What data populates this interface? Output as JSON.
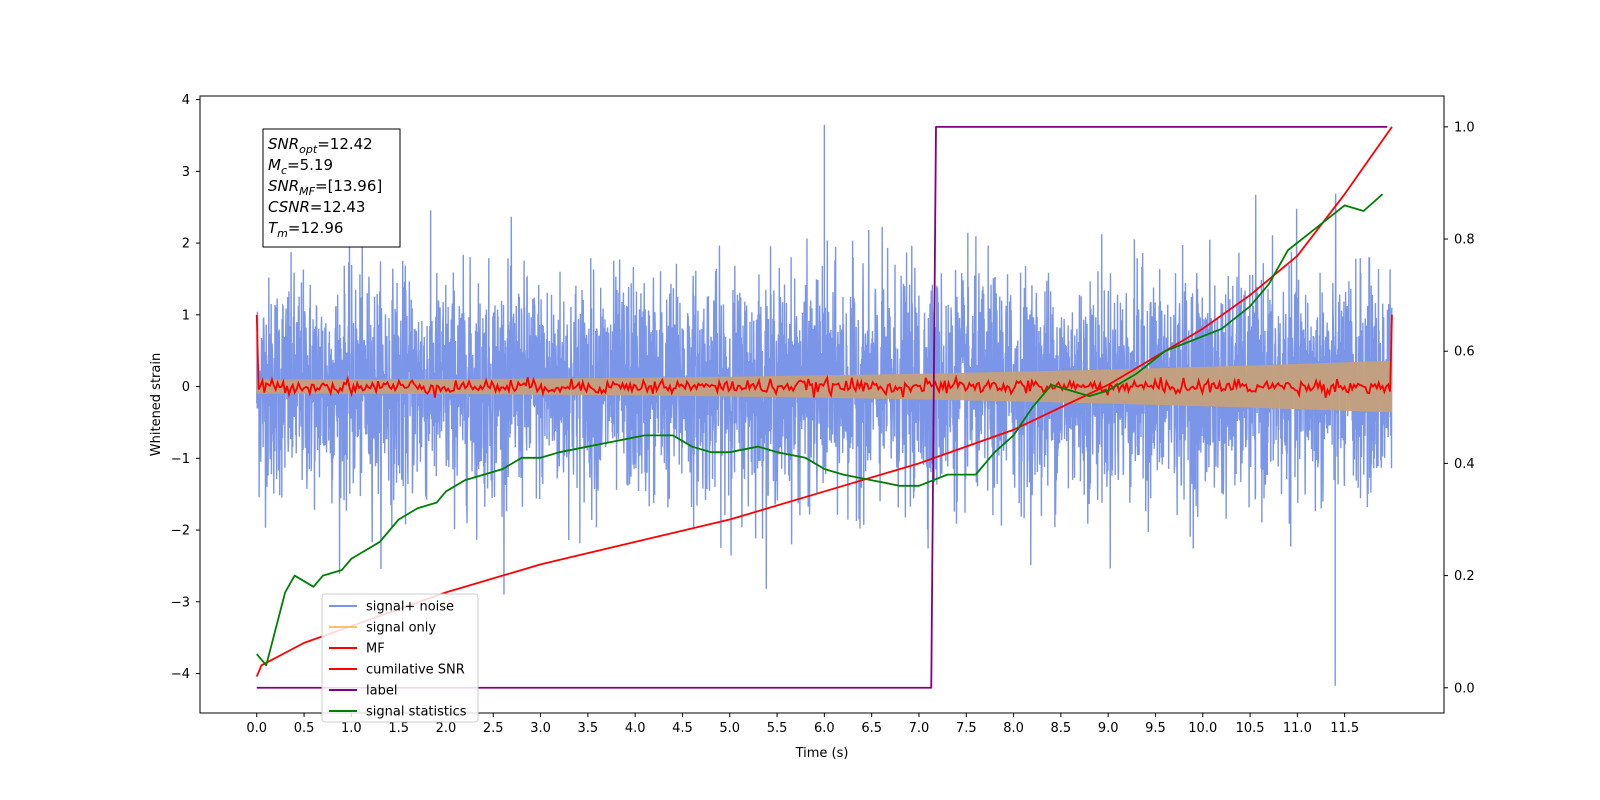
{
  "chart_data": {
    "type": "line",
    "title": "",
    "xlabel": "Time (s)",
    "ylabel": "Whitened strain",
    "xlim": [
      -0.6,
      12.55
    ],
    "ylim": [
      -4.55,
      4.05
    ],
    "y2lim": [
      -0.045,
      1.055
    ],
    "grid": false,
    "legend_position": "lower-left",
    "x_ticks": [
      "0.0",
      "0.5",
      "1.0",
      "1.5",
      "2.0",
      "2.5",
      "3.0",
      "3.5",
      "4.0",
      "4.5",
      "5.0",
      "5.5",
      "6.0",
      "6.5",
      "7.0",
      "7.5",
      "8.0",
      "8.5",
      "9.0",
      "9.5",
      "10.0",
      "10.5",
      "11.0",
      "11.5"
    ],
    "y_ticks": [
      "4",
      "3",
      "2",
      "1",
      "0",
      "−1",
      "−2",
      "−3",
      "−4"
    ],
    "y2_ticks": [
      "1.0",
      "0.8",
      "0.6",
      "0.4",
      "0.2",
      "0.0"
    ],
    "annotation": [
      {
        "name": "SNR",
        "sub": "opt",
        "value": "=12.42"
      },
      {
        "name": "M",
        "sub": "c",
        "value": "=5.19"
      },
      {
        "name": "SNR",
        "sub": "MF",
        "value": "=[13.96]"
      },
      {
        "name": "CSNR",
        "sub": "",
        "value": "=12.43"
      },
      {
        "name": "T",
        "sub": "m",
        "value": "=12.96"
      }
    ],
    "series": [
      {
        "name": "signal+ noise",
        "color": "#7b96e8",
        "axis": "left",
        "style": "noise",
        "t_range": [
          0.0,
          12.0
        ],
        "points": 4800,
        "std": 0.75,
        "max": 3.65,
        "min": -4.17
      },
      {
        "name": "signal only",
        "color": "#ffbf66",
        "axis": "left",
        "style": "chirp",
        "t_range": [
          0.0,
          12.0
        ],
        "amplitude_start": 0.1,
        "amplitude_end": 0.36
      },
      {
        "name": "MF",
        "color": "#ff0000",
        "axis": "left",
        "style": "mf",
        "t_range": [
          0.0,
          12.0
        ],
        "points": 600,
        "std": 0.05,
        "edge_values": [
          1.0,
          1.0
        ]
      },
      {
        "name": "cumilative SNR",
        "color": "#ff0000",
        "axis": "right",
        "x": [
          0.0,
          0.05,
          0.5,
          1.0,
          2.0,
          3.0,
          4.0,
          5.0,
          6.0,
          7.0,
          8.0,
          9.0,
          10.0,
          10.5,
          11.0,
          11.5,
          12.0
        ],
        "y": [
          0.02,
          0.04,
          0.08,
          0.11,
          0.17,
          0.22,
          0.26,
          0.3,
          0.35,
          0.4,
          0.46,
          0.54,
          0.64,
          0.7,
          0.77,
          0.88,
          1.0
        ]
      },
      {
        "name": "label",
        "color": "#800080",
        "axis": "right",
        "x": [
          0.0,
          7.13,
          7.18,
          11.95
        ],
        "y": [
          0.0,
          0.0,
          1.0,
          1.0
        ]
      },
      {
        "name": "signal statistics",
        "color": "#008000",
        "axis": "right",
        "x": [
          0.0,
          0.1,
          0.3,
          0.4,
          0.5,
          0.6,
          0.7,
          0.9,
          1.0,
          1.1,
          1.3,
          1.5,
          1.7,
          1.9,
          2.0,
          2.2,
          2.4,
          2.6,
          2.8,
          3.0,
          3.2,
          3.5,
          3.8,
          4.1,
          4.4,
          4.6,
          4.8,
          5.0,
          5.3,
          5.5,
          5.8,
          6.0,
          6.2,
          6.5,
          6.8,
          7.0,
          7.3,
          7.6,
          7.8,
          8.0,
          8.2,
          8.4,
          8.6,
          8.8,
          9.0,
          9.3,
          9.6,
          9.9,
          10.2,
          10.5,
          10.7,
          10.9,
          11.2,
          11.5,
          11.7,
          11.9
        ],
        "y": [
          0.06,
          0.04,
          0.17,
          0.2,
          0.19,
          0.18,
          0.2,
          0.21,
          0.23,
          0.24,
          0.26,
          0.3,
          0.32,
          0.33,
          0.35,
          0.37,
          0.38,
          0.39,
          0.41,
          0.41,
          0.42,
          0.43,
          0.44,
          0.45,
          0.45,
          0.43,
          0.42,
          0.42,
          0.43,
          0.42,
          0.41,
          0.39,
          0.38,
          0.37,
          0.36,
          0.36,
          0.38,
          0.38,
          0.42,
          0.45,
          0.5,
          0.54,
          0.53,
          0.52,
          0.53,
          0.56,
          0.6,
          0.62,
          0.64,
          0.68,
          0.72,
          0.78,
          0.82,
          0.86,
          0.85,
          0.88
        ]
      }
    ]
  }
}
